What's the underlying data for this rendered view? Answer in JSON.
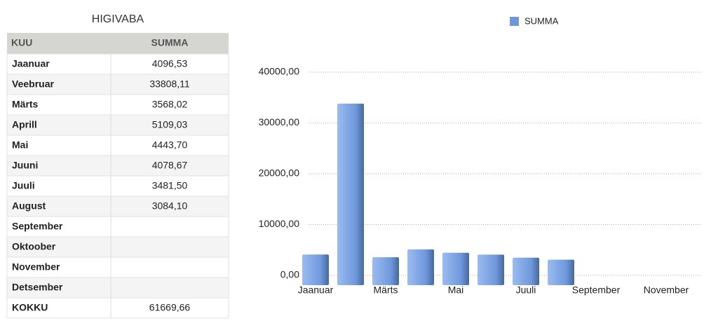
{
  "table": {
    "title": "HIGIVABA",
    "header": [
      "KUU",
      "SUMMA"
    ],
    "rows": [
      [
        "Jaanuar",
        "4096,53"
      ],
      [
        "Veebruar",
        "33808,11"
      ],
      [
        "Märts",
        "3568,02"
      ],
      [
        "Aprill",
        "5109,03"
      ],
      [
        "Mai",
        "4443,70"
      ],
      [
        "Juuni",
        "4078,67"
      ],
      [
        "Juuli",
        "3481,50"
      ],
      [
        "August",
        "3084,10"
      ],
      [
        "September"
      ],
      [
        "Oktoober"
      ],
      [
        "November"
      ],
      [
        "Detsember"
      ],
      [
        "KOKKU",
        "61669,66"
      ]
    ]
  },
  "chart_data": {
    "type": "bar",
    "categories": [
      "Jaanuar",
      null,
      "Märts",
      null,
      "Mai",
      null,
      "Juuli",
      null,
      "September",
      null,
      "November",
      null
    ],
    "series": [
      {
        "name": "SUMMA",
        "color": "#6f97dc",
        "values": [
          4096.53,
          33808.11,
          3568.02,
          5109.03,
          4443.7,
          4078.67,
          3481.5,
          3084.1,
          null,
          null,
          null,
          null
        ]
      }
    ],
    "ylim": [
      0,
      40000
    ],
    "yticks": [
      {
        "value": 0,
        "label": "0,00"
      },
      {
        "value": 10000,
        "label": "10000,00"
      },
      {
        "value": 20000,
        "label": "20000,00"
      },
      {
        "value": 30000,
        "label": "30000,00"
      },
      {
        "value": 40000,
        "label": "40000,00"
      }
    ],
    "grid": true,
    "legend": "top"
  }
}
